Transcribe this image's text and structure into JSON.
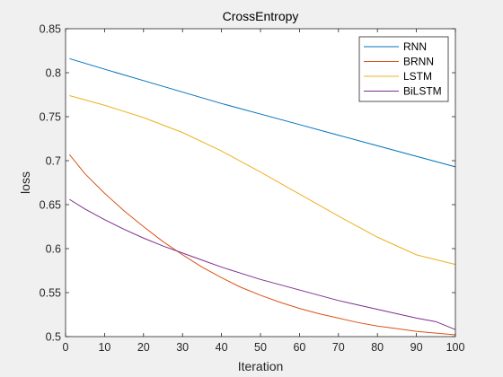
{
  "chart_data": {
    "type": "line",
    "title": "CrossEntropy",
    "xlabel": "Iteration",
    "ylabel": "loss",
    "xlim": [
      0,
      100
    ],
    "ylim": [
      0.5,
      0.85
    ],
    "xticks": [
      0,
      10,
      20,
      30,
      40,
      50,
      60,
      70,
      80,
      90,
      100
    ],
    "yticks": [
      0.5,
      0.55,
      0.6,
      0.65,
      0.7,
      0.75,
      0.8,
      0.85
    ],
    "grid": false,
    "legend_position": "top-right",
    "series": [
      {
        "name": "RNN",
        "color": "#0072BD",
        "x": [
          1,
          10,
          20,
          30,
          40,
          50,
          60,
          70,
          80,
          90,
          100
        ],
        "y": [
          0.816,
          0.804,
          0.791,
          0.778,
          0.765,
          0.753,
          0.741,
          0.729,
          0.717,
          0.705,
          0.693
        ]
      },
      {
        "name": "BRNN",
        "color": "#D95319",
        "x": [
          1,
          5,
          10,
          15,
          20,
          25,
          30,
          35,
          40,
          45,
          50,
          55,
          60,
          65,
          70,
          75,
          80,
          85,
          90,
          95,
          100
        ],
        "y": [
          0.707,
          0.685,
          0.663,
          0.643,
          0.625,
          0.608,
          0.593,
          0.579,
          0.567,
          0.556,
          0.547,
          0.539,
          0.532,
          0.526,
          0.521,
          0.516,
          0.512,
          0.509,
          0.506,
          0.504,
          0.502
        ]
      },
      {
        "name": "LSTM",
        "color": "#EDB120",
        "x": [
          1,
          10,
          20,
          30,
          40,
          50,
          60,
          70,
          80,
          90,
          100
        ],
        "y": [
          0.774,
          0.763,
          0.749,
          0.732,
          0.711,
          0.687,
          0.662,
          0.637,
          0.613,
          0.593,
          0.582
        ]
      },
      {
        "name": "BiLSTM",
        "color": "#7E2F8E",
        "x": [
          1,
          5,
          10,
          15,
          20,
          25,
          30,
          35,
          40,
          45,
          50,
          55,
          60,
          65,
          70,
          75,
          80,
          85,
          90,
          95,
          100
        ],
        "y": [
          0.656,
          0.645,
          0.633,
          0.622,
          0.612,
          0.603,
          0.595,
          0.587,
          0.579,
          0.572,
          0.565,
          0.559,
          0.553,
          0.547,
          0.541,
          0.536,
          0.531,
          0.526,
          0.521,
          0.517,
          0.508
        ]
      }
    ]
  }
}
